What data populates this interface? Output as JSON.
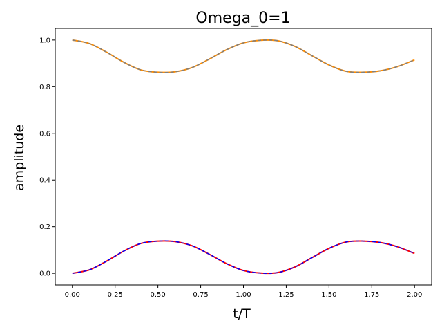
{
  "chart_data": {
    "type": "line",
    "title": "Omega_0=1",
    "xlabel": "t/T",
    "ylabel": "amplitude",
    "xlim": [
      -0.1,
      2.1
    ],
    "ylim": [
      -0.05,
      1.05
    ],
    "x_ticks": [
      0.0,
      0.25,
      0.5,
      0.75,
      1.0,
      1.25,
      1.5,
      1.75,
      2.0
    ],
    "x_tick_labels": [
      "0.00",
      "0.25",
      "0.50",
      "0.75",
      "1.00",
      "1.25",
      "1.50",
      "1.75",
      "2.00"
    ],
    "y_ticks": [
      0.0,
      0.2,
      0.4,
      0.6,
      0.8,
      1.0
    ],
    "y_tick_labels": [
      "0.0",
      "0.2",
      "0.4",
      "0.6",
      "0.8",
      "1.0"
    ],
    "grid": false,
    "legend": "none",
    "x": [
      0.0,
      0.1,
      0.2,
      0.3,
      0.4,
      0.5,
      0.6,
      0.7,
      0.8,
      0.9,
      1.0,
      1.1,
      1.2,
      1.3,
      1.4,
      1.5,
      1.6,
      1.7,
      1.8,
      1.9,
      2.0
    ],
    "series": [
      {
        "color": "#ff8c00",
        "style": "solid",
        "values": [
          1.0,
          0.985,
          0.948,
          0.905,
          0.872,
          0.862,
          0.864,
          0.882,
          0.918,
          0.958,
          0.988,
          0.999,
          0.997,
          0.973,
          0.933,
          0.893,
          0.866,
          0.862,
          0.868,
          0.886,
          0.915
        ]
      },
      {
        "color": "#808080",
        "style": "dashed",
        "values": [
          1.0,
          0.985,
          0.948,
          0.905,
          0.872,
          0.862,
          0.864,
          0.882,
          0.918,
          0.958,
          0.988,
          0.999,
          0.997,
          0.973,
          0.933,
          0.893,
          0.866,
          0.862,
          0.868,
          0.886,
          0.915
        ]
      },
      {
        "color": "#ff0000",
        "style": "solid",
        "values": [
          0.0,
          0.015,
          0.052,
          0.095,
          0.128,
          0.138,
          0.136,
          0.118,
          0.082,
          0.042,
          0.012,
          0.001,
          0.003,
          0.027,
          0.067,
          0.107,
          0.134,
          0.138,
          0.132,
          0.114,
          0.085
        ]
      },
      {
        "color": "#0000ff",
        "style": "dashed",
        "values": [
          0.0,
          0.015,
          0.052,
          0.095,
          0.128,
          0.138,
          0.136,
          0.118,
          0.082,
          0.042,
          0.012,
          0.001,
          0.003,
          0.027,
          0.067,
          0.107,
          0.134,
          0.138,
          0.132,
          0.114,
          0.085
        ]
      }
    ]
  }
}
